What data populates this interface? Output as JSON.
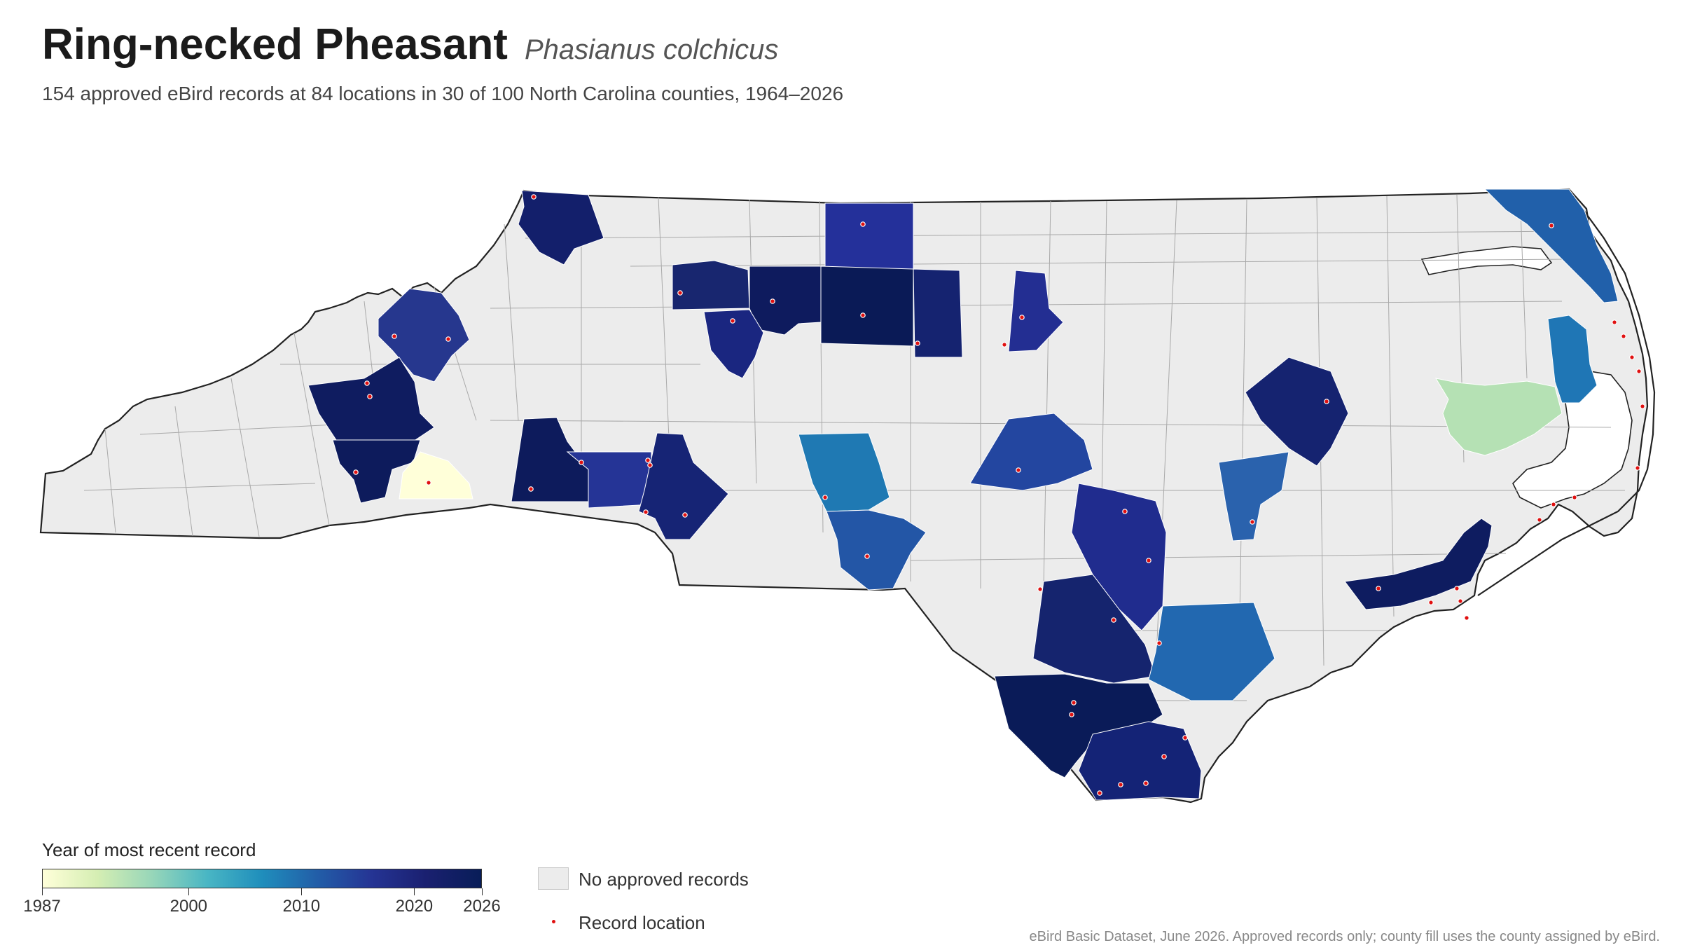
{
  "title": "Ring-necked Pheasant",
  "scientific_name": "Phasianus colchicus",
  "subtitle": "154 approved eBird records at 84 locations in 30 of 100 North Carolina counties, 1964–2026",
  "legend": {
    "title": "Year of most recent record",
    "ticks": [
      "1987",
      "2000",
      "2010",
      "2020",
      "2026"
    ],
    "tick_years": [
      1987,
      2000,
      2010,
      2020,
      2026
    ],
    "range": [
      1987,
      2026
    ],
    "colors": [
      "#ffffd9",
      "#d5eeb3",
      "#97d6b9",
      "#49b6c4",
      "#1f8ebc",
      "#225ea8",
      "#253494",
      "#1a2070",
      "#081d58"
    ],
    "no_records_label": "No approved records",
    "no_records_color": "#ececec",
    "record_location_label": "Record location",
    "record_location_color": "#e01010"
  },
  "footer": "eBird Basic Dataset, June 2026. Approved records only; county fill uses the county assigned by eBird."
}
